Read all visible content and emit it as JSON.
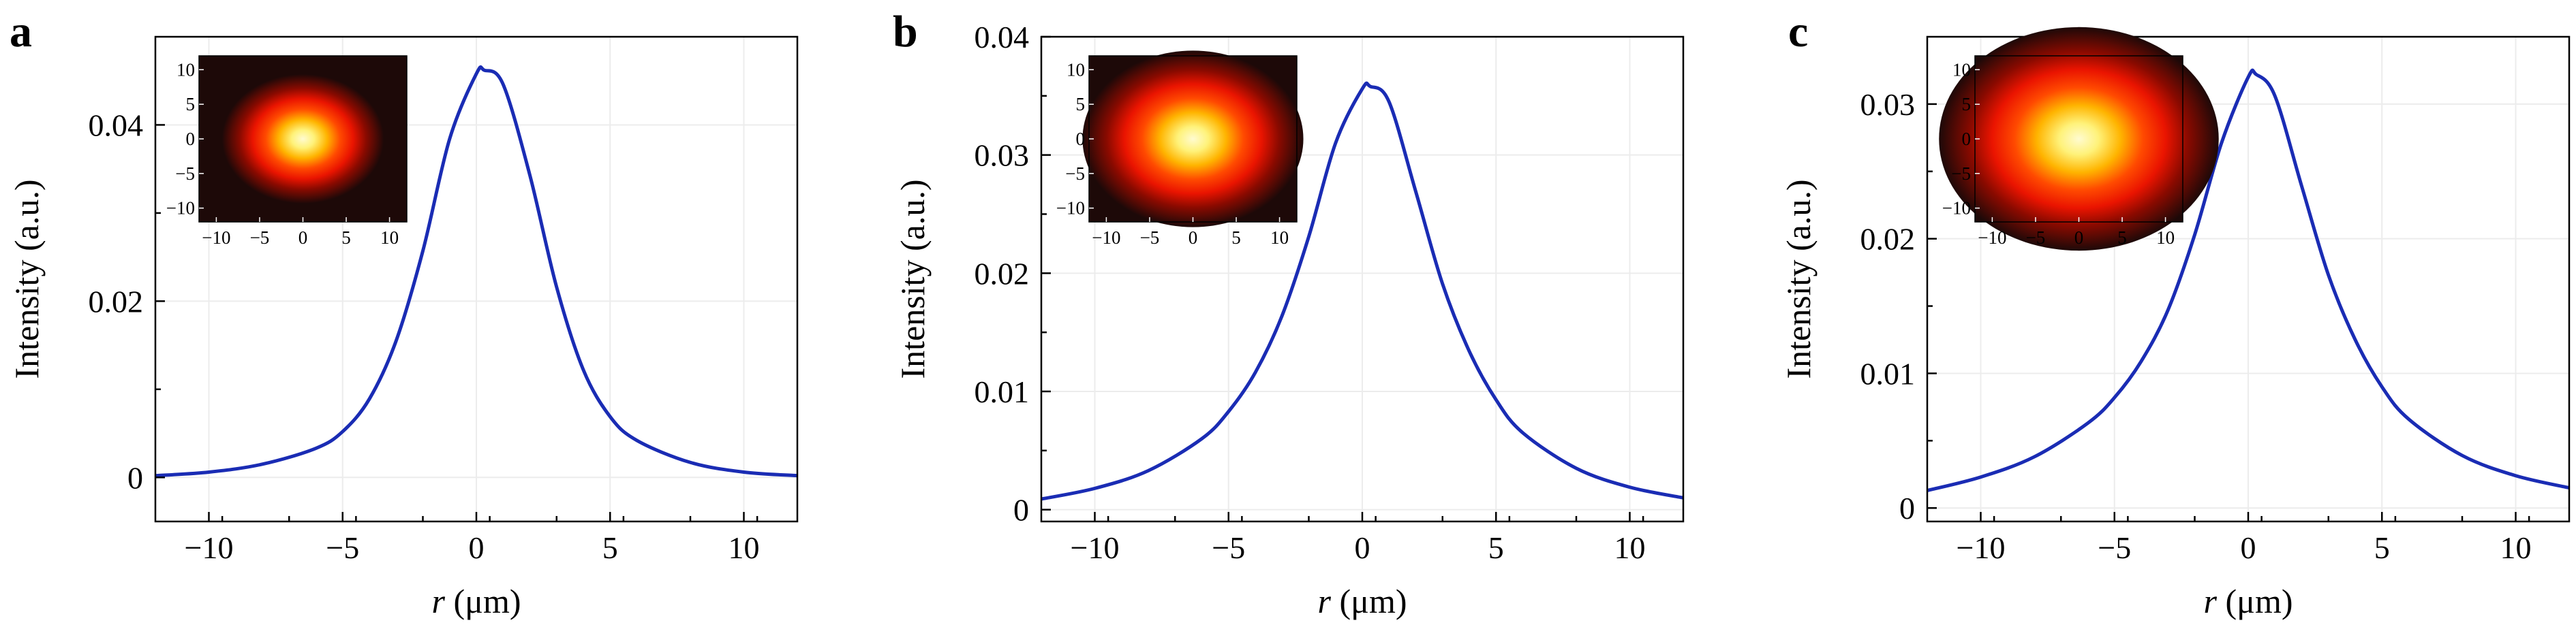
{
  "chart_data": [
    {
      "panel": "a",
      "type": "line",
      "xlabel_var": "r",
      "xlabel_unit": "(μm)",
      "ylabel": "Intensity (a.u.)",
      "xlim": [
        -12,
        12
      ],
      "ylim": [
        -0.005,
        0.05
      ],
      "xticks": [
        -10,
        -5,
        0,
        5,
        10
      ],
      "xtick_labels": [
        "−10",
        "−5",
        "0",
        "5",
        "10"
      ],
      "yticks": [
        0,
        0.02,
        0.04
      ],
      "ytick_labels": [
        "0",
        "0.02",
        "0.04"
      ],
      "grid": true,
      "color": "#1a2cb4",
      "series": [
        {
          "x": [
            -12,
            -10,
            -8,
            -6,
            -5,
            -4,
            -3,
            -2,
            -1,
            0,
            0.3,
            1,
            2,
            3,
            4,
            5,
            6,
            8,
            10,
            12
          ],
          "y": [
            0.0002,
            0.0006,
            0.0015,
            0.0033,
            0.0052,
            0.0089,
            0.0155,
            0.0257,
            0.0384,
            0.0458,
            0.0462,
            0.0446,
            0.0343,
            0.0216,
            0.0122,
            0.0069,
            0.0042,
            0.0017,
            0.0006,
            0.0002
          ]
        }
      ],
      "inset": {
        "xticks": [
          -10,
          -5,
          0,
          5,
          10
        ],
        "xtick_labels": [
          "−10",
          "−5",
          "0",
          "5",
          "10"
        ],
        "yticks": [
          10,
          5,
          0,
          -5,
          -10
        ],
        "ytick_labels": [
          "10",
          "5",
          "0",
          "−5",
          "−10"
        ],
        "spot_radius": 5.5
      }
    },
    {
      "panel": "b",
      "type": "line",
      "xlabel_var": "r",
      "xlabel_unit": "(μm)",
      "ylabel": "Intensity (a.u.)",
      "xlim": [
        -12,
        12
      ],
      "ylim": [
        -0.001,
        0.04
      ],
      "xticks": [
        -10,
        -5,
        0,
        5,
        10
      ],
      "xtick_labels": [
        "−10",
        "−5",
        "0",
        "5",
        "10"
      ],
      "yticks": [
        0,
        0.01,
        0.02,
        0.03,
        0.04
      ],
      "ytick_labels": [
        "0",
        "0.01",
        "0.02",
        "0.03",
        "0.04"
      ],
      "grid": true,
      "color": "#1a2cb4",
      "series": [
        {
          "x": [
            -12,
            -10,
            -8,
            -6,
            -5,
            -4,
            -3,
            -2,
            -1,
            0,
            0.3,
            1,
            2,
            3,
            4,
            5,
            6,
            8,
            10,
            12
          ],
          "y": [
            0.0009,
            0.0018,
            0.0033,
            0.006,
            0.0083,
            0.0116,
            0.0164,
            0.0231,
            0.031,
            0.0356,
            0.0358,
            0.0345,
            0.0269,
            0.0191,
            0.0134,
            0.0093,
            0.0065,
            0.0035,
            0.0019,
            0.001
          ]
        }
      ],
      "inset": {
        "xticks": [
          -10,
          -5,
          0,
          5,
          10
        ],
        "xtick_labels": [
          "−10",
          "−5",
          "0",
          "5",
          "10"
        ],
        "yticks": [
          10,
          5,
          0,
          -5,
          -10
        ],
        "ytick_labels": [
          "10",
          "5",
          "0",
          "−5",
          "−10"
        ],
        "spot_radius": 7.5
      }
    },
    {
      "panel": "c",
      "type": "line",
      "xlabel_var": "r",
      "xlabel_unit": "(μm)",
      "ylabel": "Intensity (a.u.)",
      "xlim": [
        -12,
        12
      ],
      "ylim": [
        -0.001,
        0.035
      ],
      "xticks": [
        -10,
        -5,
        0,
        5,
        10
      ],
      "xtick_labels": [
        "−10",
        "−5",
        "0",
        "5",
        "10"
      ],
      "yticks": [
        0,
        0.01,
        0.02,
        0.03
      ],
      "ytick_labels": [
        "0",
        "0.01",
        "0.02",
        "0.03"
      ],
      "grid": true,
      "color": "#1a2cb4",
      "series": [
        {
          "x": [
            -12,
            -10,
            -8,
            -6,
            -5,
            -4,
            -3,
            -2,
            -1,
            0,
            0.3,
            1,
            2,
            3,
            4,
            5,
            6,
            8,
            10,
            12
          ],
          "y": [
            0.0013,
            0.0023,
            0.0038,
            0.0063,
            0.0082,
            0.0109,
            0.0147,
            0.0203,
            0.0271,
            0.032,
            0.0322,
            0.0306,
            0.0239,
            0.0173,
            0.0125,
            0.009,
            0.0066,
            0.0039,
            0.0024,
            0.0015
          ]
        }
      ],
      "inset": {
        "xticks": [
          -10,
          -5,
          0,
          5,
          10
        ],
        "xtick_labels": [
          "−10",
          "−5",
          "0",
          "5",
          "10"
        ],
        "yticks": [
          10,
          5,
          0,
          -5,
          -10
        ],
        "ytick_labels": [
          "10",
          "5",
          "0",
          "−5",
          "−10"
        ],
        "spot_radius": 9.5
      }
    }
  ]
}
